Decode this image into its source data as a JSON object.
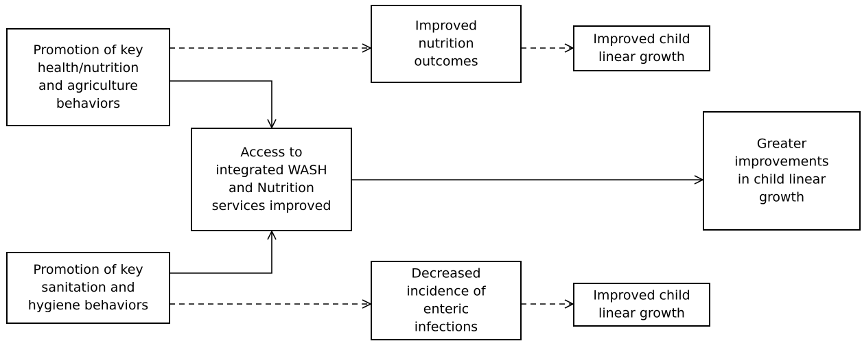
{
  "nodes": [
    {
      "lines": [
        "Promotion of key",
        "health/nutrition",
        "and agriculture",
        "behaviors"
      ]
    },
    {
      "lines": [
        "Improved",
        "nutrition",
        "outcomes"
      ]
    },
    {
      "lines": [
        "Improved child",
        "linear growth"
      ]
    },
    {
      "lines": [
        "Access to",
        "integrated WASH",
        "and Nutrition",
        "services improved"
      ]
    },
    {
      "lines": [
        "Greater",
        "improvements",
        "in child linear",
        "growth"
      ]
    },
    {
      "lines": [
        "Promotion of key",
        "sanitation and",
        "hygiene behaviors"
      ]
    },
    {
      "lines": [
        "Decreased",
        "incidence of",
        "enteric",
        "infections"
      ]
    },
    {
      "lines": [
        "Improved child",
        "linear growth"
      ]
    }
  ]
}
